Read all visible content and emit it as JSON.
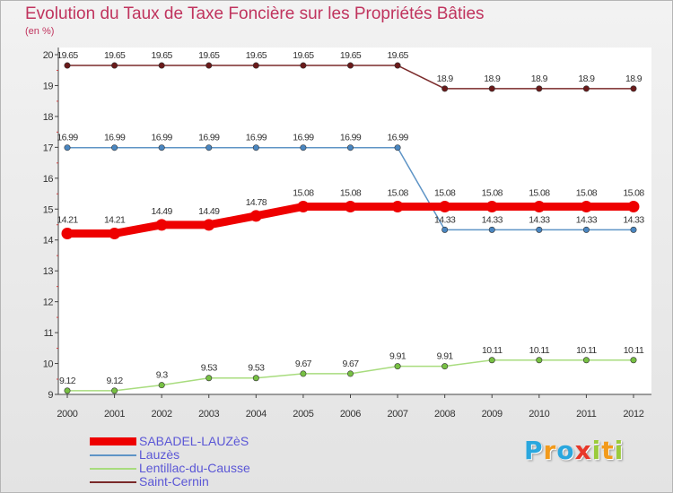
{
  "title": "Evolution du Taux de Taxe Foncière sur les Propriétés Bâties",
  "subtitle": "(en %)",
  "brand": {
    "text": "Proxiti",
    "letters": [
      {
        "ch": "P",
        "color": "#2aa7de"
      },
      {
        "ch": "r",
        "color": "#f29a1b"
      },
      {
        "ch": "o",
        "color": "#2aa7de"
      },
      {
        "ch": "x",
        "color": "#e8382a"
      },
      {
        "ch": "i",
        "color": "#9bcb3b"
      },
      {
        "ch": "t",
        "color": "#f29a1b"
      },
      {
        "ch": "i",
        "color": "#9bcb3b"
      }
    ]
  },
  "chart_data": {
    "type": "line",
    "title": "Evolution du Taux de Taxe Foncière sur les Propriétés Bâties",
    "ylabel": "(en %)",
    "xlabel": "",
    "ylim": [
      9,
      20
    ],
    "yticks": [
      "9",
      "10",
      "11",
      "12",
      "13",
      "14",
      "15",
      "16",
      "17",
      "18",
      "19",
      "20"
    ],
    "categories": [
      "2000",
      "2001",
      "2002",
      "2003",
      "2004",
      "2005",
      "2006",
      "2007",
      "2008",
      "2009",
      "2010",
      "2011",
      "2012"
    ],
    "series": [
      {
        "name": "Saint-Cernin",
        "color": "#7a2a2a",
        "marker": "#6a1a1a",
        "width": 1.5,
        "labelPos": "above",
        "values": [
          19.65,
          19.65,
          19.65,
          19.65,
          19.65,
          19.65,
          19.65,
          19.65,
          18.9,
          18.9,
          18.9,
          18.9,
          18.9
        ],
        "labels": [
          "19.65",
          "19.65",
          "19.65",
          "19.65",
          "19.65",
          "19.65",
          "19.65",
          "19.65",
          "18.9",
          "18.9",
          "18.9",
          "18.9",
          "18.9"
        ]
      },
      {
        "name": "Lauzès",
        "color": "#5e94c6",
        "marker": "#4a86c0",
        "width": 1.5,
        "labelPos": "above",
        "values": [
          16.99,
          16.99,
          16.99,
          16.99,
          16.99,
          16.99,
          16.99,
          16.99,
          14.33,
          14.33,
          14.33,
          14.33,
          14.33
        ],
        "labels": [
          "16.99",
          "16.99",
          "16.99",
          "16.99",
          "16.99",
          "16.99",
          "16.99",
          "16.99",
          "14.33",
          "14.33",
          "14.33",
          "14.33",
          "14.33"
        ]
      },
      {
        "name": "SABADEL-LAUZèS",
        "color": "#ee0000",
        "marker": "#ee0000",
        "width": 9,
        "labelPos": "above",
        "values": [
          14.21,
          14.21,
          14.49,
          14.49,
          14.78,
          15.08,
          15.08,
          15.08,
          15.08,
          15.08,
          15.08,
          15.08,
          15.08
        ],
        "labels": [
          "14.21",
          "14.21",
          "14.49",
          "14.49",
          "14.78",
          "15.08",
          "15.08",
          "15.08",
          "15.08",
          "15.08",
          "15.08",
          "15.08",
          "15.08"
        ]
      },
      {
        "name": "Lentillac-du-Causse",
        "color": "#a8dc7e",
        "marker": "#77c043",
        "width": 1.5,
        "labelPos": "above",
        "values": [
          9.12,
          9.12,
          9.3,
          9.53,
          9.53,
          9.67,
          9.67,
          9.91,
          9.91,
          10.11,
          10.11,
          10.11,
          10.11
        ],
        "labels": [
          "9.12",
          "9.12",
          "9.3",
          "9.53",
          "9.53",
          "9.67",
          "9.67",
          "9.91",
          "9.91",
          "10.11",
          "10.11",
          "10.11",
          "10.11"
        ]
      }
    ],
    "legend": [
      {
        "name": "SABADEL-LAUZèS",
        "color": "#ee0000",
        "thick": true
      },
      {
        "name": "Lauzès",
        "color": "#5e94c6",
        "thick": false
      },
      {
        "name": "Lentillac-du-Causse",
        "color": "#a8dc7e",
        "thick": false
      },
      {
        "name": "Saint-Cernin",
        "color": "#7a2a2a",
        "thick": false
      }
    ],
    "grid": false,
    "legend_position": "bottom-left"
  }
}
